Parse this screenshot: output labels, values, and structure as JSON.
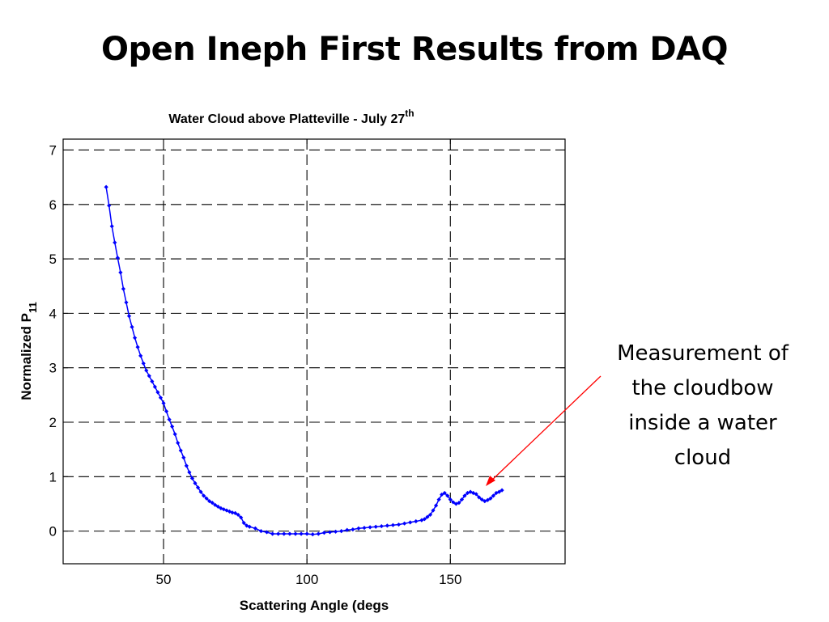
{
  "slide": {
    "title": "Open Ineph First Results from DAQ"
  },
  "annotation": {
    "lines": [
      "Measurement of",
      "the cloudbow",
      "inside a water",
      "cloud"
    ],
    "arrow_color": "#ff0000"
  },
  "chart_data": {
    "type": "line",
    "title_main": "Water Cloud above Platteville - July 27",
    "title_sup": "th",
    "xlabel": "Scattering Angle (degs",
    "ylabel_main": "Normalized P",
    "ylabel_sub": "11",
    "xlim": [
      15,
      190
    ],
    "ylim": [
      -0.6,
      7.2
    ],
    "xticks": [
      50,
      100,
      150
    ],
    "yticks": [
      0,
      1,
      2,
      3,
      4,
      5,
      6,
      7
    ],
    "grid": true,
    "series_color": "#0000ff",
    "series": [
      {
        "x": [
          30,
          31,
          32,
          33,
          34,
          35,
          36,
          37,
          38,
          39,
          40,
          41,
          42,
          43,
          44,
          45,
          46,
          47,
          48,
          49,
          50,
          51,
          52,
          53,
          54,
          55,
          56,
          57,
          58,
          59,
          60,
          61,
          62,
          63,
          64,
          65,
          66,
          67,
          68,
          69,
          70,
          71,
          72,
          73,
          74,
          75,
          76,
          77,
          78,
          79,
          80,
          82,
          84,
          86,
          88,
          90,
          92,
          94,
          96,
          98,
          100,
          102,
          104,
          106,
          108,
          110,
          112,
          114,
          116,
          118,
          120,
          122,
          124,
          126,
          128,
          130,
          132,
          134,
          136,
          138,
          140,
          141,
          142,
          143,
          144,
          145,
          146,
          147,
          148,
          149,
          150,
          151,
          152,
          153,
          154,
          155,
          156,
          157,
          158,
          159,
          160,
          161,
          162,
          163,
          164,
          165,
          166,
          167,
          168
        ],
        "y": [
          6.32,
          5.98,
          5.6,
          5.3,
          5.02,
          4.75,
          4.45,
          4.2,
          3.95,
          3.75,
          3.55,
          3.38,
          3.22,
          3.08,
          2.95,
          2.85,
          2.75,
          2.65,
          2.55,
          2.45,
          2.35,
          2.2,
          2.05,
          1.92,
          1.78,
          1.62,
          1.48,
          1.35,
          1.2,
          1.08,
          0.97,
          0.88,
          0.8,
          0.72,
          0.65,
          0.6,
          0.55,
          0.52,
          0.48,
          0.45,
          0.42,
          0.4,
          0.38,
          0.36,
          0.34,
          0.33,
          0.3,
          0.25,
          0.15,
          0.1,
          0.08,
          0.05,
          0.0,
          -0.02,
          -0.05,
          -0.05,
          -0.05,
          -0.05,
          -0.05,
          -0.05,
          -0.05,
          -0.06,
          -0.05,
          -0.03,
          -0.02,
          -0.01,
          0.0,
          0.02,
          0.03,
          0.05,
          0.06,
          0.07,
          0.08,
          0.09,
          0.1,
          0.11,
          0.12,
          0.14,
          0.16,
          0.18,
          0.2,
          0.22,
          0.26,
          0.3,
          0.38,
          0.47,
          0.58,
          0.67,
          0.7,
          0.65,
          0.58,
          0.53,
          0.5,
          0.52,
          0.58,
          0.65,
          0.7,
          0.72,
          0.7,
          0.68,
          0.62,
          0.58,
          0.55,
          0.57,
          0.6,
          0.65,
          0.7,
          0.72,
          0.75
        ]
      }
    ]
  }
}
